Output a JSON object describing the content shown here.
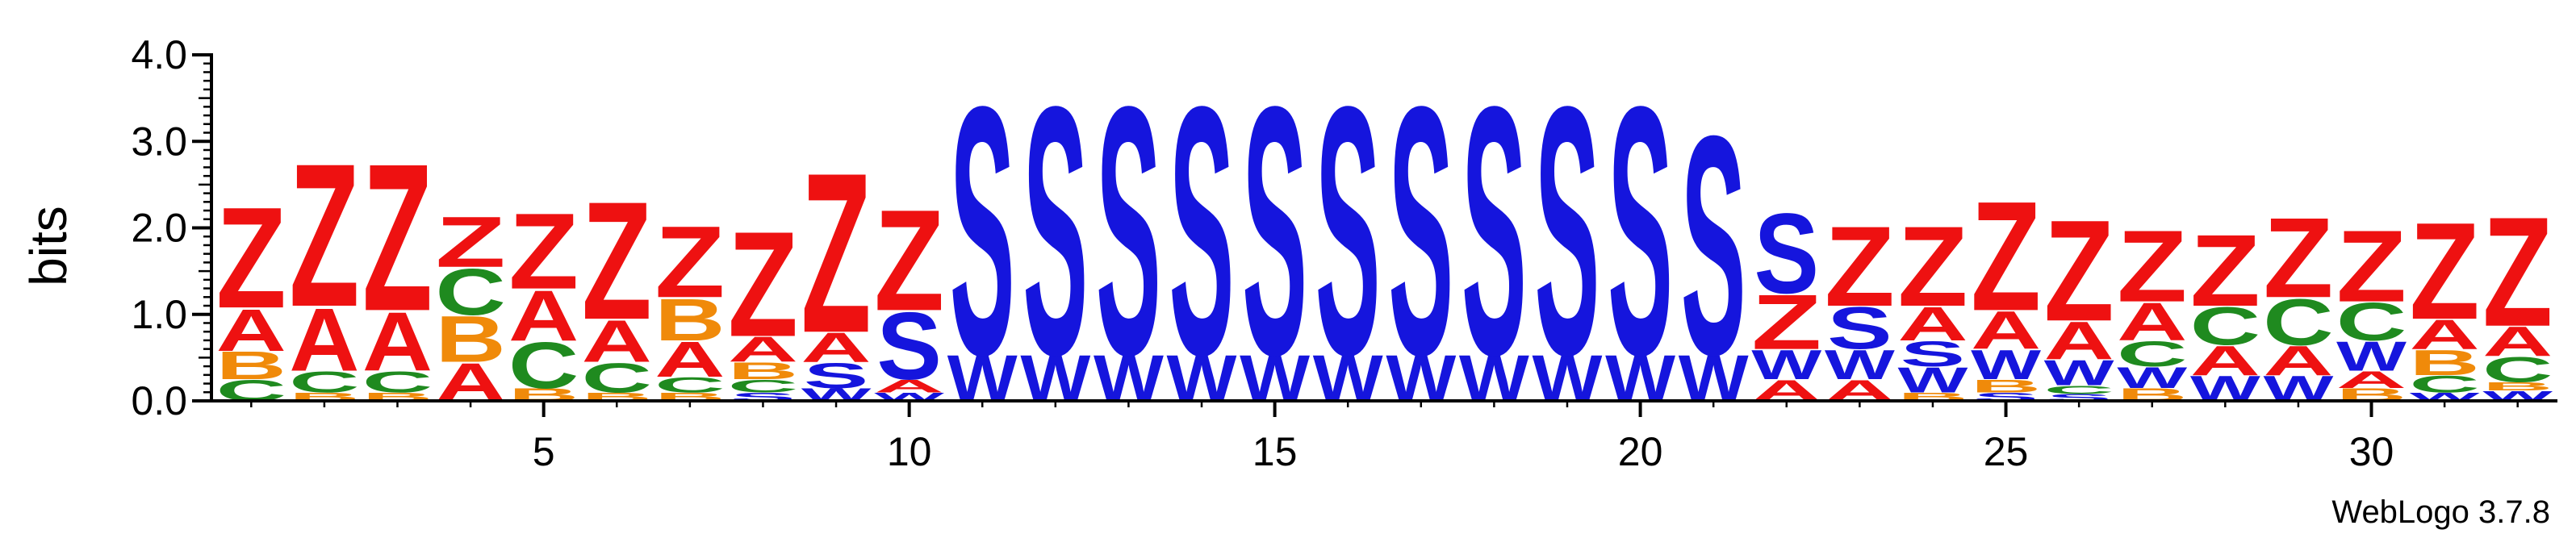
{
  "chart_data": {
    "type": "sequence-logo",
    "ylabel": "bits",
    "ylim": [
      0,
      4.0
    ],
    "yticks": [
      "0.0",
      "1.0",
      "2.0",
      "3.0",
      "4.0"
    ],
    "xticks": [
      5,
      10,
      15,
      20,
      25,
      30
    ],
    "watermark": "WebLogo 3.7.8",
    "colors": {
      "Z": "#ee1111",
      "A": "#ee1111",
      "S": "#1515dd",
      "W": "#1515dd",
      "B": "#f08a0a",
      "C": "#1f8a1f"
    },
    "positions": [
      {
        "pos": 1,
        "stack": [
          [
            "C",
            0.25
          ],
          [
            "B",
            0.33
          ],
          [
            "A",
            0.5
          ],
          [
            "Z",
            1.2
          ]
        ]
      },
      {
        "pos": 2,
        "stack": [
          [
            "B",
            0.1
          ],
          [
            "C",
            0.25
          ],
          [
            "A",
            0.75
          ],
          [
            "Z",
            1.7
          ]
        ]
      },
      {
        "pos": 3,
        "stack": [
          [
            "B",
            0.1
          ],
          [
            "C",
            0.25
          ],
          [
            "A",
            0.7
          ],
          [
            "Z",
            1.75
          ]
        ]
      },
      {
        "pos": 4,
        "stack": [
          [
            "A",
            0.45
          ],
          [
            "B",
            0.55
          ],
          [
            "C",
            0.55
          ],
          [
            "Z",
            0.6
          ]
        ]
      },
      {
        "pos": 5,
        "stack": [
          [
            "B",
            0.15
          ],
          [
            "C",
            0.55
          ],
          [
            "A",
            0.6
          ],
          [
            "Z",
            0.9
          ]
        ]
      },
      {
        "pos": 6,
        "stack": [
          [
            "B",
            0.1
          ],
          [
            "C",
            0.35
          ],
          [
            "A",
            0.5
          ],
          [
            "Z",
            1.4
          ]
        ]
      },
      {
        "pos": 7,
        "stack": [
          [
            "B",
            0.1
          ],
          [
            "C",
            0.18
          ],
          [
            "A",
            0.42
          ],
          [
            "B",
            0.5
          ],
          [
            "Z",
            0.85
          ]
        ]
      },
      {
        "pos": 8,
        "stack": [
          [
            "S",
            0.1
          ],
          [
            "C",
            0.15
          ],
          [
            "B",
            0.2
          ],
          [
            "A",
            0.3
          ],
          [
            "Z",
            1.25
          ]
        ]
      },
      {
        "pos": 9,
        "stack": [
          [
            "W",
            0.15
          ],
          [
            "S",
            0.3
          ],
          [
            "A",
            0.35
          ],
          [
            "Z",
            1.9
          ]
        ]
      },
      {
        "pos": 10,
        "stack": [
          [
            "W",
            0.1
          ],
          [
            "A",
            0.15
          ],
          [
            "S",
            0.8
          ],
          [
            "Z",
            1.2
          ]
        ]
      },
      {
        "pos": 11,
        "stack": [
          [
            "W",
            0.55
          ],
          [
            "S",
            2.95
          ]
        ]
      },
      {
        "pos": 12,
        "stack": [
          [
            "W",
            0.55
          ],
          [
            "S",
            2.95
          ]
        ]
      },
      {
        "pos": 13,
        "stack": [
          [
            "W",
            0.55
          ],
          [
            "S",
            2.95
          ]
        ]
      },
      {
        "pos": 14,
        "stack": [
          [
            "W",
            0.55
          ],
          [
            "S",
            2.95
          ]
        ]
      },
      {
        "pos": 15,
        "stack": [
          [
            "W",
            0.55
          ],
          [
            "S",
            2.95
          ]
        ]
      },
      {
        "pos": 16,
        "stack": [
          [
            "W",
            0.55
          ],
          [
            "S",
            2.95
          ]
        ]
      },
      {
        "pos": 17,
        "stack": [
          [
            "W",
            0.55
          ],
          [
            "S",
            2.95
          ]
        ]
      },
      {
        "pos": 18,
        "stack": [
          [
            "W",
            0.55
          ],
          [
            "S",
            2.95
          ]
        ]
      },
      {
        "pos": 19,
        "stack": [
          [
            "W",
            0.55
          ],
          [
            "S",
            2.95
          ]
        ]
      },
      {
        "pos": 20,
        "stack": [
          [
            "W",
            0.55
          ],
          [
            "S",
            2.95
          ]
        ]
      },
      {
        "pos": 21,
        "stack": [
          [
            "W",
            0.55
          ],
          [
            "S",
            2.6
          ]
        ]
      },
      {
        "pos": 22,
        "stack": [
          [
            "A",
            0.25
          ],
          [
            "W",
            0.35
          ],
          [
            "Z",
            0.65
          ],
          [
            "S",
            0.95
          ]
        ]
      },
      {
        "pos": 23,
        "stack": [
          [
            "A",
            0.25
          ],
          [
            "W",
            0.35
          ],
          [
            "S",
            0.5
          ],
          [
            "Z",
            0.95
          ]
        ]
      },
      {
        "pos": 24,
        "stack": [
          [
            "B",
            0.1
          ],
          [
            "W",
            0.3
          ],
          [
            "S",
            0.3
          ],
          [
            "A",
            0.4
          ],
          [
            "Z",
            0.95
          ]
        ]
      },
      {
        "pos": 25,
        "stack": [
          [
            "S",
            0.1
          ],
          [
            "B",
            0.15
          ],
          [
            "W",
            0.35
          ],
          [
            "A",
            0.45
          ],
          [
            "Z",
            1.3
          ]
        ]
      },
      {
        "pos": 26,
        "stack": [
          [
            "S",
            0.08
          ],
          [
            "C",
            0.1
          ],
          [
            "W",
            0.3
          ],
          [
            "A",
            0.45
          ],
          [
            "Z",
            1.2
          ]
        ]
      },
      {
        "pos": 27,
        "stack": [
          [
            "B",
            0.15
          ],
          [
            "W",
            0.25
          ],
          [
            "C",
            0.3
          ],
          [
            "A",
            0.45
          ],
          [
            "Z",
            0.85
          ]
        ]
      },
      {
        "pos": 28,
        "stack": [
          [
            "W",
            0.3
          ],
          [
            "A",
            0.35
          ],
          [
            "C",
            0.45
          ],
          [
            "Z",
            0.85
          ]
        ]
      },
      {
        "pos": 29,
        "stack": [
          [
            "W",
            0.3
          ],
          [
            "A",
            0.35
          ],
          [
            "C",
            0.55
          ],
          [
            "Z",
            0.95
          ]
        ]
      },
      {
        "pos": 30,
        "stack": [
          [
            "B",
            0.15
          ],
          [
            "A",
            0.2
          ],
          [
            "W",
            0.35
          ],
          [
            "C",
            0.45
          ],
          [
            "Z",
            0.85
          ]
        ]
      },
      {
        "pos": 31,
        "stack": [
          [
            "W",
            0.1
          ],
          [
            "C",
            0.2
          ],
          [
            "B",
            0.3
          ],
          [
            "A",
            0.35
          ],
          [
            "Z",
            1.15
          ]
        ]
      },
      {
        "pos": 32,
        "stack": [
          [
            "W",
            0.12
          ],
          [
            "B",
            0.1
          ],
          [
            "C",
            0.3
          ],
          [
            "A",
            0.35
          ],
          [
            "Z",
            1.3
          ]
        ]
      }
    ]
  }
}
